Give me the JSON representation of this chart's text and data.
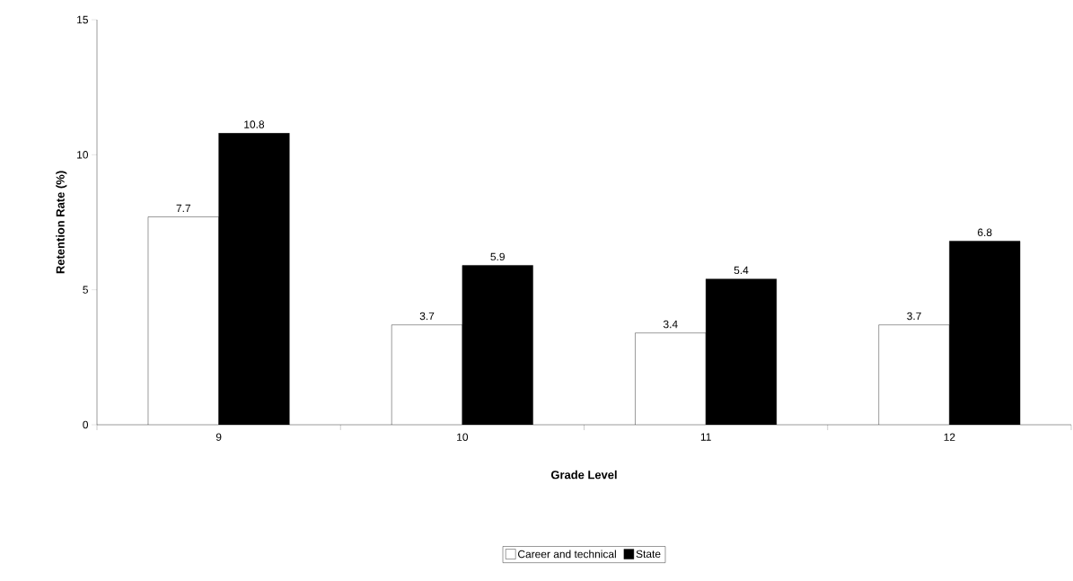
{
  "chart_data": {
    "type": "bar",
    "xlabel": "Grade Level",
    "ylabel": "Retention Rate (%)",
    "categories": [
      "9",
      "10",
      "11",
      "12"
    ],
    "series": [
      {
        "name": "Career and technical",
        "color": "#ffffff",
        "values": [
          7.7,
          3.7,
          3.4,
          3.7
        ]
      },
      {
        "name": "State",
        "color": "#000000",
        "values": [
          10.8,
          5.9,
          5.4,
          6.8
        ]
      }
    ],
    "ylim": [
      0,
      15
    ],
    "yticks": [
      0,
      5,
      10,
      15
    ],
    "data_labels": true,
    "legend": "bottom"
  }
}
